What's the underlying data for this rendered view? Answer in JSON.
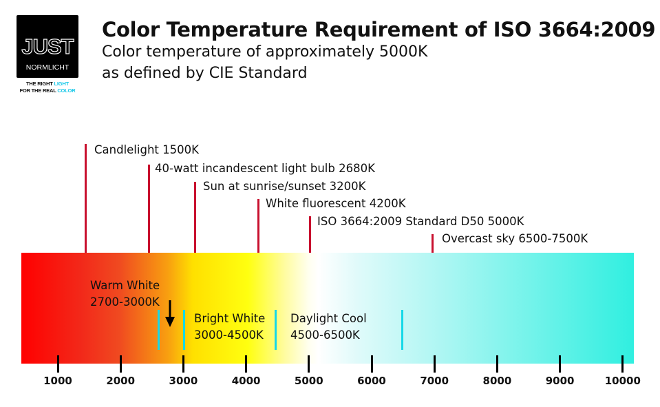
{
  "logo": {
    "word": "JUST",
    "sub": "NORMLICHT",
    "tag1a": "THE RIGHT ",
    "tag1b": "LIGHT",
    "tag2a": "FOR THE REAL ",
    "tag2b": "COLOR"
  },
  "title": "Color Temperature Requirement of ISO 3664:2009",
  "subtitle1": "Color temperature of approximately 5000K",
  "subtitle2": "as defined by CIE Standard",
  "markers": [
    {
      "label": "Candlelight 1500K",
      "kelvin": 1500
    },
    {
      "label": "40-watt incandescent light bulb 2680K",
      "kelvin": 2680
    },
    {
      "label": "Sun at sunrise/sunset 3200K",
      "kelvin": 3200
    },
    {
      "label": "White fluorescent 4200K",
      "kelvin": 4200
    },
    {
      "label": "ISO 3664:2009 Standard D50 5000K",
      "kelvin": 5000
    },
    {
      "label": "Overcast sky 6500-7500K",
      "kelvin": 7000
    }
  ],
  "bands": [
    {
      "name": "Warm White",
      "range": "2700-3000K"
    },
    {
      "name": "Bright White",
      "range": "3000-4500K"
    },
    {
      "name": "Daylight Cool",
      "range": "4500-6500K"
    }
  ],
  "axis": {
    "ticks": [
      "1000",
      "2000",
      "3000",
      "4000",
      "5000",
      "6000",
      "7000",
      "8000",
      "9000",
      "10000"
    ]
  },
  "colors": {
    "marker": "#c8102e",
    "band_divider": "#16d8e8",
    "start": "#ff0000",
    "end": "#30efe0"
  }
}
